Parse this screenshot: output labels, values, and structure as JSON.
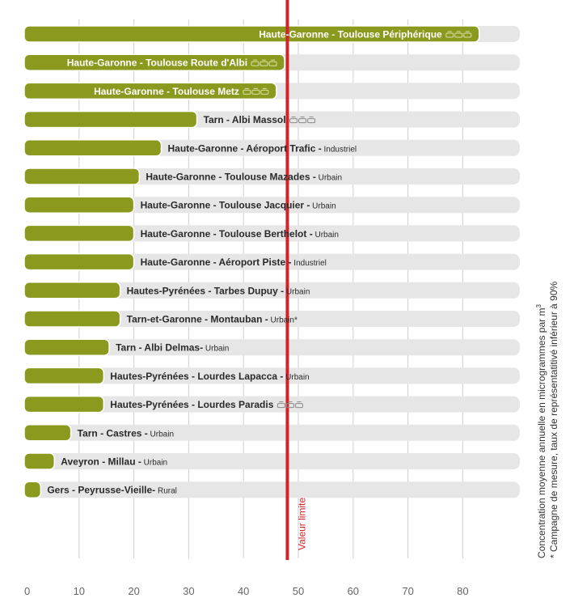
{
  "chart_data": {
    "type": "bar",
    "orientation": "horizontal",
    "xlim": [
      0,
      90
    ],
    "x_ticks": [
      0,
      10,
      20,
      30,
      40,
      50,
      60,
      70,
      80
    ],
    "grid": true,
    "limit_value": 48,
    "limit_label": "Valeur limite",
    "caption_line1": "Concentration moyenne annuelle en microgrammes par m",
    "caption_sup": "3",
    "caption_line2": "* Campagne de mesure, taux de représentatitivé inférieur à 90%",
    "colors": {
      "bar": "#8b9a1e",
      "track": "#e6e6e6",
      "limit": "#d2232a",
      "axis_text": "#666666",
      "label": "#2a2a2a"
    },
    "bars": [
      {
        "name": "Haute-Garonne - Toulouse Périphérique",
        "suffix": "",
        "value": 83,
        "traffic_icon": true,
        "label_inside": true
      },
      {
        "name": "Haute-Garonne - Toulouse Route d'Albi",
        "suffix": "",
        "value": 47.5,
        "traffic_icon": true,
        "label_inside": true
      },
      {
        "name": "Haute-Garonne - Toulouse Metz",
        "suffix": "",
        "value": 46,
        "traffic_icon": true,
        "label_inside": true
      },
      {
        "name": "Tarn - Albi Massol",
        "suffix": "",
        "value": 31.5,
        "traffic_icon": true,
        "label_inside": false
      },
      {
        "name": "Haute-Garonne - Aéroport Trafic -",
        "suffix": "Industriel",
        "value": 25,
        "traffic_icon": false,
        "label_inside": false
      },
      {
        "name": "Haute-Garonne - Toulouse Mazades -",
        "suffix": "Urbain",
        "value": 21,
        "traffic_icon": false,
        "label_inside": false
      },
      {
        "name": "Haute-Garonne - Toulouse Jacquier -",
        "suffix": "Urbain",
        "value": 20,
        "traffic_icon": false,
        "label_inside": false
      },
      {
        "name": "Haute-Garonne - Toulouse Berthelot -",
        "suffix": "Urbain",
        "value": 20,
        "traffic_icon": false,
        "label_inside": false
      },
      {
        "name": "Haute-Garonne - Aéroport Piste -",
        "suffix": "Industriel",
        "value": 20,
        "traffic_icon": false,
        "label_inside": false
      },
      {
        "name": "Hautes-Pyrénées - Tarbes Dupuy -",
        "suffix": "Urbain",
        "value": 17.5,
        "traffic_icon": false,
        "label_inside": false
      },
      {
        "name": "Tarn-et-Garonne - Montauban -",
        "suffix": "Urbain*",
        "value": 17.5,
        "traffic_icon": false,
        "label_inside": false
      },
      {
        "name": "Tarn - Albi Delmas-",
        "suffix": "Urbain",
        "value": 15.5,
        "traffic_icon": false,
        "label_inside": false
      },
      {
        "name": "Hautes-Pyrénées - Lourdes Lapacca -",
        "suffix": "Urbain",
        "value": 14.5,
        "traffic_icon": false,
        "label_inside": false
      },
      {
        "name": "Hautes-Pyrénées - Lourdes Paradis",
        "suffix": "",
        "value": 14.5,
        "traffic_icon": true,
        "label_inside": false
      },
      {
        "name": "Tarn - Castres -",
        "suffix": "Urbain",
        "value": 8.5,
        "traffic_icon": false,
        "label_inside": false
      },
      {
        "name": "Aveyron - Millau -",
        "suffix": "Urbain",
        "value": 5.5,
        "traffic_icon": false,
        "label_inside": false
      },
      {
        "name": "Gers - Peyrusse-Vieille-",
        "suffix": "Rural",
        "value": 3,
        "traffic_icon": false,
        "label_inside": false
      }
    ]
  }
}
